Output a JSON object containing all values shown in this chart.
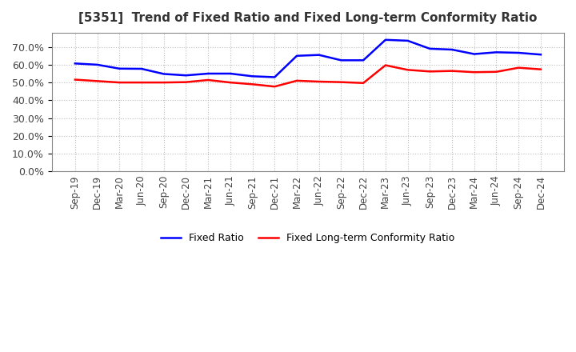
{
  "title": "[5351]  Trend of Fixed Ratio and Fixed Long-term Conformity Ratio",
  "title_fontsize": 11,
  "x_labels": [
    "Sep-19",
    "Dec-19",
    "Mar-20",
    "Jun-20",
    "Sep-20",
    "Dec-20",
    "Mar-21",
    "Jun-21",
    "Sep-21",
    "Dec-21",
    "Mar-22",
    "Jun-22",
    "Sep-22",
    "Dec-22",
    "Mar-23",
    "Jun-23",
    "Sep-23",
    "Dec-23",
    "Mar-24",
    "Jun-24",
    "Sep-24",
    "Dec-24"
  ],
  "fixed_ratio": [
    0.607,
    0.6,
    0.578,
    0.577,
    0.548,
    0.54,
    0.55,
    0.55,
    0.535,
    0.53,
    0.65,
    0.655,
    0.625,
    0.625,
    0.74,
    0.735,
    0.69,
    0.685,
    0.66,
    0.67,
    0.667,
    0.657
  ],
  "fixed_lt_ratio": [
    0.516,
    0.508,
    0.5,
    0.5,
    0.5,
    0.502,
    0.514,
    0.5,
    0.49,
    0.477,
    0.51,
    0.505,
    0.502,
    0.497,
    0.597,
    0.571,
    0.562,
    0.565,
    0.558,
    0.56,
    0.583,
    0.574
  ],
  "fixed_ratio_color": "#0000FF",
  "fixed_lt_ratio_color": "#FF0000",
  "ylim": [
    0.0,
    0.78
  ],
  "yticks": [
    0.0,
    0.1,
    0.2,
    0.3,
    0.4,
    0.5,
    0.6,
    0.7
  ],
  "grid_color": "#bbbbbb",
  "background_color": "#ffffff",
  "legend_fixed": "Fixed Ratio",
  "legend_fixed_lt": "Fixed Long-term Conformity Ratio",
  "line_width": 1.8
}
